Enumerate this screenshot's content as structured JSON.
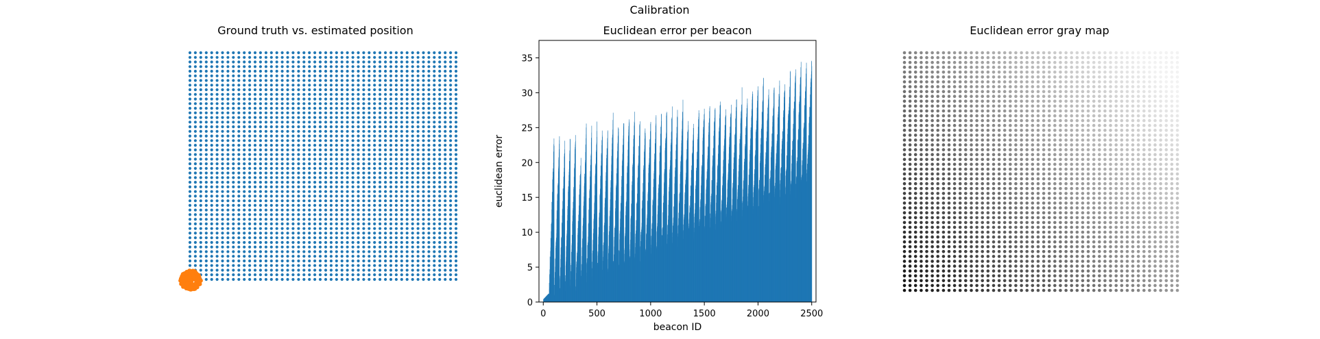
{
  "figure": {
    "suptitle": "Calibration"
  },
  "colors": {
    "truth": "#1f77b4",
    "estimate": "#ff7f0e",
    "bars": "#1f77b4",
    "axes": "#000000"
  },
  "chart_data": [
    {
      "type": "scatter",
      "title": "Ground truth vs. estimated position",
      "axes_visible": false,
      "series": [
        {
          "marker": "dot",
          "color": "#1f77b4",
          "grid_points": {
            "cols": 50,
            "rows": 50
          }
        },
        {
          "marker": "dot",
          "color": "#ff7f0e",
          "cluster": "bottom-left corner"
        }
      ]
    },
    {
      "type": "bar",
      "title": "Euclidean error per beacon",
      "xlabel": "beacon ID",
      "ylabel": "euclidean error",
      "xlim": [
        -40,
        2540
      ],
      "ylim": [
        0,
        37.5
      ],
      "xticks": [
        0,
        500,
        1000,
        1500,
        2000,
        2500
      ],
      "yticks": [
        0,
        5,
        10,
        15,
        20,
        25,
        30,
        35
      ],
      "n_bars": 2500,
      "row_peaks": [
        1.2,
        23.0,
        23.3,
        22.7,
        23.2,
        23.5,
        20.3,
        24.6,
        24.5,
        24.9,
        24.6,
        24.8,
        26.3,
        25.2,
        26.1,
        26.6,
        26.7,
        26.2,
        24.8,
        25.8,
        25.8,
        27.0,
        27.3,
        27.2,
        27.0,
        27.9,
        26.0,
        25.1,
        27.5,
        27.7,
        27.5,
        28.0,
        29.0,
        27.3,
        28.3,
        29.0,
        29.7,
        29.1,
        30.0,
        30.5,
        31.5,
        30.4,
        30.5,
        30.8,
        31.2,
        32.6,
        32.9,
        33.7,
        33.5,
        34.3
      ]
    },
    {
      "type": "heatmap",
      "title": "Euclidean error gray map",
      "axes_visible": false,
      "colormap": "gray",
      "grid_points": {
        "cols": 50,
        "rows": 50
      }
    }
  ]
}
